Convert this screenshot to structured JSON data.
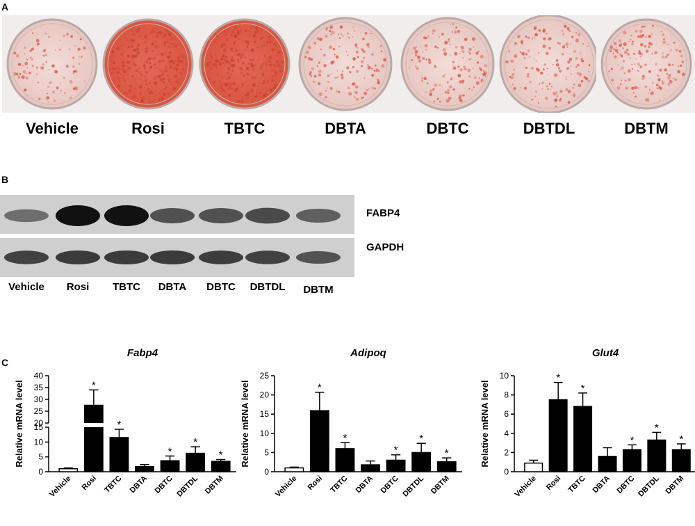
{
  "panels": {
    "a": "A",
    "b": "B",
    "c": "C"
  },
  "panel_a": {
    "labels": [
      "Vehicle",
      "Rosi",
      "TBTC",
      "DBTA",
      "DBTC",
      "DBTDL",
      "DBTM"
    ],
    "stain_level": [
      0.15,
      0.95,
      0.92,
      0.35,
      0.35,
      0.45,
      0.45
    ]
  },
  "panel_b": {
    "proteins": [
      "FABP4",
      "GAPDH"
    ],
    "lanes": [
      "Vehicle",
      "Rosi",
      "TBTC",
      "DBTA",
      "DBTC",
      "DBTDL",
      "DBTM"
    ],
    "fabp4_intensity": [
      0.35,
      1.0,
      1.0,
      0.55,
      0.55,
      0.6,
      0.45
    ],
    "gapdh_intensity": [
      0.75,
      0.8,
      0.8,
      0.8,
      0.78,
      0.75,
      0.6
    ]
  },
  "chart_data": [
    {
      "type": "bar",
      "title": "Fabp4",
      "ylabel": "Relative mRNA level",
      "categories": [
        "Vehicle",
        "Rosi",
        "TBTC",
        "DBTA",
        "DBTC",
        "DBTDL",
        "DBTM"
      ],
      "values": [
        1.0,
        27.5,
        11.5,
        1.7,
        3.7,
        6.2,
        3.5
      ],
      "errors": [
        0.3,
        6.5,
        2.8,
        0.7,
        1.6,
        2.2,
        0.6
      ],
      "significant": [
        false,
        true,
        true,
        false,
        true,
        true,
        true
      ],
      "open_bars": [
        true,
        false,
        false,
        false,
        false,
        false,
        false
      ],
      "broken_axis": true,
      "lower_ylim": [
        0,
        15
      ],
      "upper_ylim": [
        20,
        40
      ],
      "yticks_lower": [
        0,
        5,
        10,
        15
      ],
      "yticks_upper": [
        20,
        25,
        30,
        35,
        40
      ],
      "grid": false
    },
    {
      "type": "bar",
      "title": "Adipoq",
      "ylabel": "Relative mRNA level",
      "categories": [
        "Vehicle",
        "Rosi",
        "TBTC",
        "DBTA",
        "DBTC",
        "DBTDL",
        "DBTM"
      ],
      "values": [
        1.0,
        15.9,
        6.0,
        1.8,
        3.0,
        5.0,
        2.6
      ],
      "errors": [
        0.2,
        4.8,
        1.6,
        1.0,
        1.4,
        2.4,
        1.0
      ],
      "significant": [
        false,
        true,
        true,
        false,
        true,
        true,
        true
      ],
      "open_bars": [
        true,
        false,
        false,
        false,
        false,
        false,
        false
      ],
      "ylim": [
        0,
        25
      ],
      "yticks": [
        0,
        5,
        10,
        15,
        20,
        25
      ],
      "grid": false
    },
    {
      "type": "bar",
      "title": "Glut4",
      "ylabel": "Relative mRNA level",
      "categories": [
        "Vehicle",
        "Rosi",
        "TBTC",
        "DBTA",
        "DBTC",
        "DBTDL",
        "DBTM"
      ],
      "values": [
        0.9,
        7.5,
        6.8,
        1.6,
        2.3,
        3.3,
        2.3
      ],
      "errors": [
        0.3,
        1.8,
        1.4,
        0.9,
        0.5,
        0.8,
        0.6
      ],
      "significant": [
        false,
        true,
        true,
        false,
        true,
        true,
        true
      ],
      "open_bars": [
        true,
        false,
        false,
        false,
        false,
        false,
        false
      ],
      "ylim": [
        0,
        10
      ],
      "yticks": [
        0,
        2,
        4,
        6,
        8,
        10
      ],
      "grid": false
    }
  ],
  "significance_marker": "*"
}
